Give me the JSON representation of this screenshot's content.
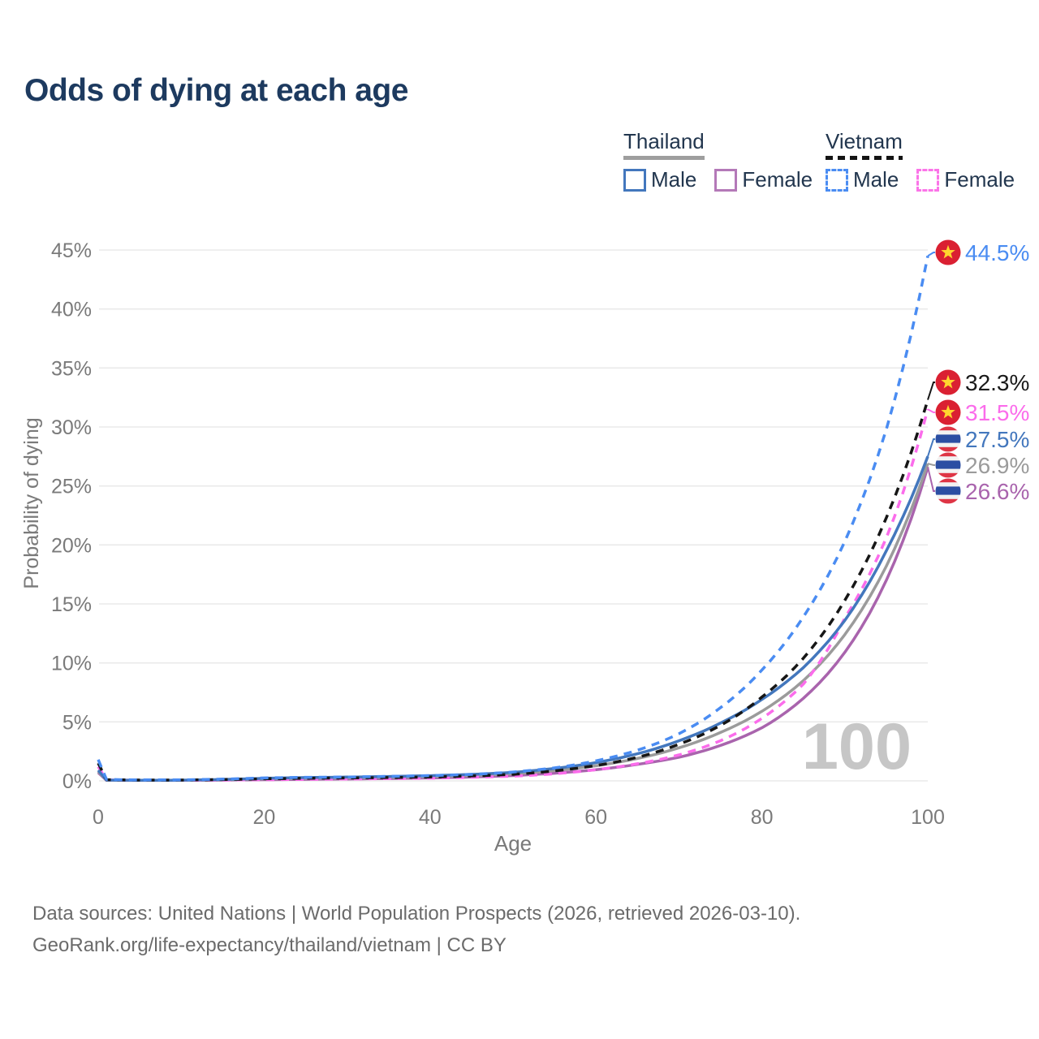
{
  "title": "Odds of dying at each age",
  "watermark": "100",
  "legend": {
    "groups": [
      {
        "id": "thailand",
        "label": "Thailand",
        "line_color": "#9e9e9e",
        "line_style": "solid",
        "items": [
          {
            "id": "thailand-male",
            "label": "Male",
            "color": "#4377bd",
            "style": "solid"
          },
          {
            "id": "thailand-female",
            "label": "Female",
            "color": "#b479b8",
            "style": "solid"
          }
        ]
      },
      {
        "id": "vietnam",
        "label": "Vietnam",
        "line_color": "#141414",
        "line_style": "dashed",
        "items": [
          {
            "id": "vietnam-male",
            "label": "Male",
            "color": "#4a8cf2",
            "style": "dashed"
          },
          {
            "id": "vietnam-female",
            "label": "Female",
            "color": "#fb74e8",
            "style": "dashed"
          }
        ]
      }
    ]
  },
  "footer": {
    "line1": "Data sources: United Nations | World Population Prospects (2026, retrieved 2026-03-10).",
    "line2": "GeoRank.org/life-expectancy/thailand/vietnam | CC BY"
  },
  "chart_data": {
    "type": "line",
    "title": "Odds of dying at each age",
    "xlabel": "Age",
    "ylabel": "Probability of dying",
    "xlim": [
      0,
      100
    ],
    "ylim": [
      0,
      45
    ],
    "x_ticks": [
      0,
      20,
      40,
      60,
      80,
      100
    ],
    "y_ticks": [
      0,
      5,
      10,
      15,
      20,
      25,
      30,
      35,
      40,
      45
    ],
    "y_tick_suffix": "%",
    "grid": "horizontal",
    "legend_position": "top-right",
    "age_watermark": "100",
    "ages": [
      0,
      1,
      5,
      10,
      15,
      20,
      25,
      30,
      35,
      40,
      45,
      50,
      55,
      60,
      65,
      70,
      75,
      80,
      85,
      90,
      95,
      100
    ],
    "series": [
      {
        "name": "Thailand Female",
        "country": "Thailand",
        "sex": "Female",
        "color": "#a964ad",
        "dash": false,
        "flag": "thailand",
        "end_value": 26.6,
        "end_label": "26.6%",
        "label_color": "#a964ad",
        "values": [
          0.7,
          0.05,
          0.04,
          0.045,
          0.07,
          0.1,
          0.13,
          0.16,
          0.2,
          0.25,
          0.33,
          0.45,
          0.65,
          0.95,
          1.4,
          2.0,
          3.0,
          4.5,
          7.0,
          10.9,
          17.0,
          26.6
        ]
      },
      {
        "name": "Thailand (both sexes)",
        "country": "Thailand",
        "sex": "Both",
        "color": "#9b9b9b",
        "dash": false,
        "flag": "thailand",
        "end_value": 26.9,
        "end_label": "26.9%",
        "label_color": "#9b9b9b",
        "values": [
          0.8,
          0.06,
          0.045,
          0.05,
          0.1,
          0.17,
          0.22,
          0.26,
          0.3,
          0.36,
          0.45,
          0.6,
          0.88,
          1.28,
          1.9,
          2.8,
          4.1,
          5.9,
          8.5,
          12.4,
          18.2,
          26.9
        ]
      },
      {
        "name": "Vietnam Female",
        "country": "Vietnam",
        "sex": "Female",
        "color": "#fb6ceb",
        "dash": true,
        "flag": "vietnam",
        "end_value": 31.5,
        "end_label": "31.5%",
        "label_color": "#fb6ceb",
        "values": [
          1.2,
          0.08,
          0.05,
          0.05,
          0.07,
          0.1,
          0.13,
          0.16,
          0.19,
          0.23,
          0.3,
          0.4,
          0.6,
          0.95,
          1.45,
          2.2,
          3.4,
          5.3,
          8.2,
          13.8,
          20.6,
          31.5
        ]
      },
      {
        "name": "Thailand Male",
        "country": "Thailand",
        "sex": "Male",
        "color": "#4377bd",
        "dash": false,
        "flag": "thailand",
        "end_value": 27.5,
        "end_label": "27.5%",
        "label_color": "#4377bd",
        "values": [
          0.9,
          0.07,
          0.05,
          0.06,
          0.12,
          0.22,
          0.28,
          0.32,
          0.37,
          0.44,
          0.55,
          0.72,
          1.05,
          1.55,
          2.3,
          3.4,
          4.9,
          6.9,
          9.6,
          13.6,
          19.5,
          27.5
        ]
      },
      {
        "name": "Vietnam (both sexes)",
        "country": "Vietnam",
        "sex": "Both",
        "color": "#161616",
        "dash": true,
        "flag": "vietnam",
        "end_value": 32.3,
        "end_label": "32.3%",
        "label_color": "#1a1a1a",
        "values": [
          1.5,
          0.1,
          0.07,
          0.07,
          0.11,
          0.18,
          0.22,
          0.25,
          0.28,
          0.33,
          0.42,
          0.55,
          0.85,
          1.3,
          2.0,
          3.1,
          4.7,
          7.1,
          10.4,
          15.3,
          22.3,
          32.3
        ]
      },
      {
        "name": "Vietnam Male",
        "country": "Vietnam",
        "sex": "Male",
        "color": "#4a8cf2",
        "dash": true,
        "flag": "vietnam",
        "end_value": 44.5,
        "end_label": "44.5%",
        "label_color": "#4a8cf2",
        "values": [
          1.8,
          0.12,
          0.08,
          0.09,
          0.15,
          0.25,
          0.3,
          0.33,
          0.38,
          0.45,
          0.55,
          0.75,
          1.1,
          1.7,
          2.6,
          4.0,
          6.2,
          9.4,
          13.9,
          20.3,
          29.8,
          44.5
        ]
      }
    ],
    "flag_colors": {
      "vietnam_red": "#da2032",
      "vietnam_star": "#ffd52e",
      "thailand_red": "#de3545",
      "thailand_blue": "#2b4ea3",
      "thailand_white": "#f2f2f2"
    }
  }
}
